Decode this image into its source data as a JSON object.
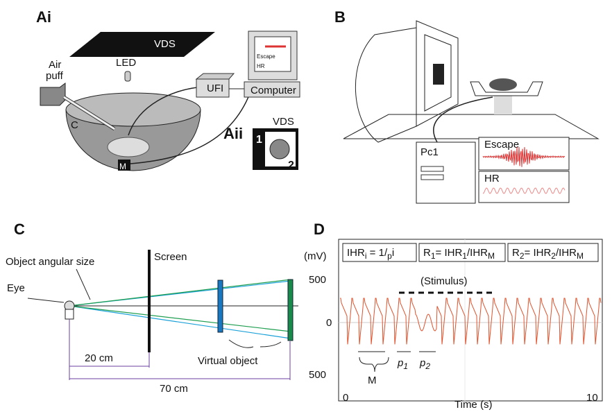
{
  "panels": {
    "Ai": {
      "label": "Ai",
      "vds": "VDS",
      "led": "LED",
      "air_puff": [
        "Air",
        "puff"
      ],
      "ufi": "UFI",
      "computer": "Computer",
      "screen_escape": "Escape",
      "screen_hr": "HR",
      "container": "C",
      "monitor": "M"
    },
    "Aii": {
      "label": "Aii",
      "vds": "VDS",
      "position_1": "1",
      "position_2": "2"
    },
    "B": {
      "label": "B",
      "pc": "Pc1",
      "escape": "Escape",
      "hr": "HR"
    },
    "C": {
      "label": "C",
      "angular_size": "Object angular size",
      "screen": "Screen",
      "eye": "Eye",
      "distance_screen": "20 cm",
      "virtual_object": "Virtual object",
      "distance_object": "70 cm"
    },
    "D": {
      "label": "D",
      "y_unit": "(mV)",
      "yticks": [
        "500",
        "0",
        "500"
      ],
      "xticks": [
        "0",
        "10"
      ],
      "x_label": "Time (s)",
      "stimulus": "(Stimulus)",
      "m": "M",
      "p1": [
        "p",
        "1"
      ],
      "p2": [
        "p",
        "2"
      ],
      "formulas": [
        [
          "IHR",
          "i",
          " = 1/",
          "p",
          "i"
        ],
        [
          "R",
          "1",
          "= IHR",
          "1",
          "/IHR",
          "M"
        ],
        [
          "R",
          "2",
          "= IHR",
          "2",
          "/IHR",
          "M"
        ]
      ]
    }
  }
}
